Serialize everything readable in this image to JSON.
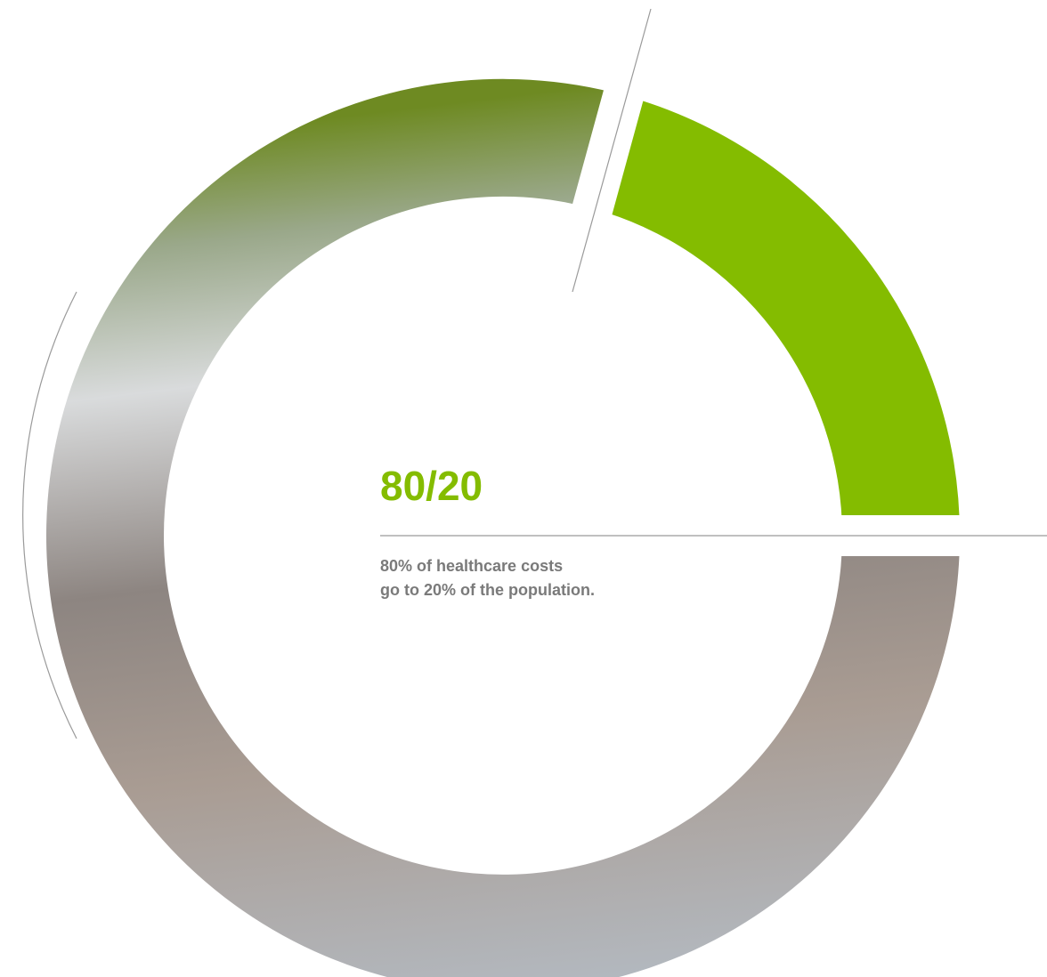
{
  "headline": "80/20",
  "description": [
    "80% of healthcare costs",
    "go to 20% of the population."
  ]
}
